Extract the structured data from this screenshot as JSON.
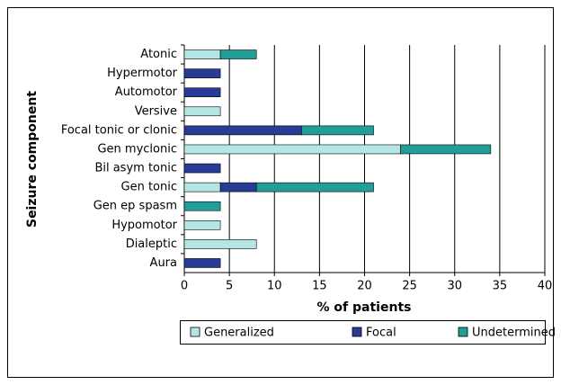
{
  "chart_data": {
    "type": "stacked-bar-horizontal",
    "categories": [
      "Atonic",
      "Hypermotor",
      "Automotor",
      "Versive",
      "Focal tonic or clonic",
      "Gen myclonic",
      "Bil asym tonic",
      "Gen tonic",
      "Gen ep spasm",
      "Hypomotor",
      "Dialeptic",
      "Aura"
    ],
    "series": [
      {
        "name": "Generalized",
        "color": "#b5e6e6",
        "values": [
          4,
          0,
          0,
          4,
          0,
          24,
          0,
          4,
          0,
          4,
          8,
          0
        ]
      },
      {
        "name": "Focal",
        "color": "#283c96",
        "values": [
          0,
          4,
          4,
          0,
          13,
          0,
          4,
          4,
          0,
          0,
          0,
          4
        ]
      },
      {
        "name": "Undetermined",
        "color": "#229e98",
        "values": [
          4,
          0,
          0,
          0,
          8,
          10,
          0,
          13,
          4,
          0,
          0,
          0
        ]
      }
    ],
    "xlabel": "% of patients",
    "ylabel": "Seizure component",
    "xlim": [
      0,
      40
    ],
    "xticks": [
      0,
      5,
      10,
      15,
      20,
      25,
      30,
      35,
      40
    ],
    "grid": true,
    "legend": "bottom"
  }
}
